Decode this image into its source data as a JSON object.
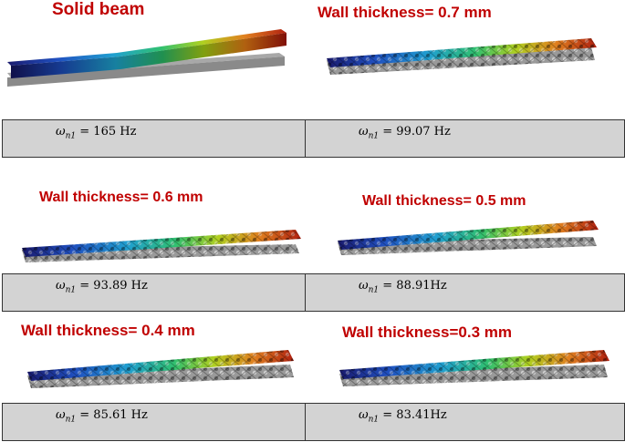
{
  "panels": [
    {
      "title": "Solid beam",
      "symbol": "ω",
      "subscript": "n1",
      "value": "= 165 Hz"
    },
    {
      "title": "Wall thickness= 0.7 mm",
      "symbol": "ω",
      "subscript": "n1",
      "value": "= 99.07 Hz"
    },
    {
      "title": "Wall thickness= 0.6 mm",
      "symbol": "ω",
      "subscript": "n1",
      "value": "= 93.89 Hz"
    },
    {
      "title": "Wall thickness= 0.5 mm",
      "symbol": "ω",
      "subscript": "n1",
      "value": "= 88.91Hz"
    },
    {
      "title": "Wall thickness= 0.4 mm",
      "symbol": "ω",
      "subscript": "n1",
      "value": "= 85.61 Hz"
    },
    {
      "title": "Wall thickness=0.3 mm",
      "symbol": "ω",
      "subscript": "n1",
      "value": "= 83.41Hz"
    }
  ],
  "colors": {
    "title": "#c00000",
    "box_fill": "#d3d3d3",
    "gradient": [
      "#1a1a6e",
      "#2050c0",
      "#20a0d0",
      "#30c070",
      "#b0d020",
      "#e08020",
      "#b02010"
    ]
  }
}
